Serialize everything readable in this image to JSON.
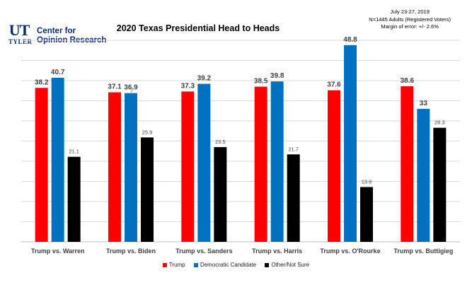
{
  "logo": {
    "mark_line1": "UT",
    "mark_line2": "TYLER",
    "name_line1": "Center for",
    "name_line2": "Opinion Research"
  },
  "info": {
    "line1": "July 23-27, 2019",
    "line2": "N=1445 Adults (Registered Voters)",
    "line3": "Margin of error: +/- 2.6%"
  },
  "colors": {
    "trump": "#ff0000",
    "dem": "#0070c0",
    "other": "#000000",
    "grid": "#d9d9d9"
  },
  "chart_data": {
    "type": "bar",
    "title": "2020 Texas Presidential Head to Heads",
    "categories": [
      "Trump vs. Warren",
      "Trump vs. Biden",
      "Trump vs. Sanders",
      "Trump vs. Harris",
      "Trump vs. O'Rourke",
      "Trump vs. Buttigieg"
    ],
    "series": [
      {
        "name": "Trump",
        "values": [
          38.2,
          37.1,
          37.3,
          38.5,
          37.6,
          38.6
        ],
        "labels": [
          "38.2",
          "37.1",
          "37.3",
          "38.5",
          "37.6",
          "38.6"
        ]
      },
      {
        "name": "Democratic Candidate",
        "values": [
          40.7,
          36.9,
          39.2,
          39.8,
          48.8,
          33
        ],
        "labels": [
          "40.7",
          "36.9",
          "39.2",
          "39.8",
          "48.8",
          "33"
        ]
      },
      {
        "name": "Other/Not Sure",
        "values": [
          21.1,
          25.9,
          23.5,
          21.7,
          13.6,
          28.3
        ],
        "labels": [
          "21.1",
          "25.9",
          "23.5",
          "21.7",
          "13.6",
          "28.3"
        ]
      }
    ],
    "ylim": [
      0,
      50
    ],
    "grid": true,
    "legend": "bottom"
  }
}
